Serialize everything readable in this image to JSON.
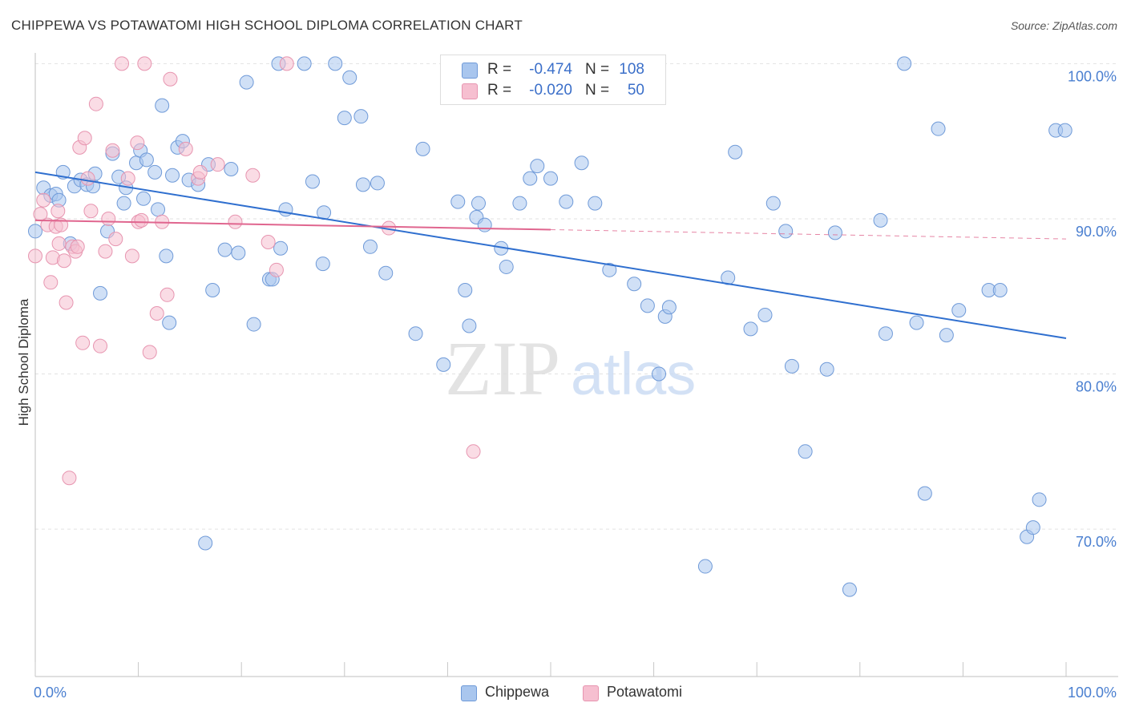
{
  "header": {
    "title": "CHIPPEWA VS POTAWATOMI HIGH SCHOOL DIPLOMA CORRELATION CHART",
    "source": "Source: ZipAtlas.com"
  },
  "watermark": {
    "zip": "ZIP",
    "atlas": "atlas"
  },
  "legend": {
    "rows": [
      {
        "r_label": "R =",
        "r_value": "-0.474",
        "n_label": "N =",
        "n_value": "108"
      },
      {
        "r_label": "R =",
        "r_value": "-0.020",
        "n_label": "N =",
        "n_value": "50"
      }
    ]
  },
  "bottom_legend": {
    "items": [
      "Chippewa",
      "Potawatomi"
    ]
  },
  "colors": {
    "chippewa_fill": "#a9c6ee",
    "chippewa_stroke": "#6f9ad8",
    "chippewa_line": "#2f6fcf",
    "potawatomi_fill": "#f6bfd0",
    "potawatomi_stroke": "#e795b0",
    "potawatomi_line": "#e0668f",
    "tick_label": "#4a7fd0",
    "grid": "#e2e2e2"
  },
  "chart_data": {
    "type": "scatter",
    "title": "CHIPPEWA VS POTAWATOMI HIGH SCHOOL DIPLOMA CORRELATION CHART",
    "xlabel": "",
    "ylabel": "High School Diploma",
    "xlim": [
      0,
      100
    ],
    "ylim": [
      60.5,
      101
    ],
    "x_tick_labels": [
      "0.0%",
      "100.0%"
    ],
    "y_ticks": [
      70,
      80,
      90,
      100
    ],
    "y_tick_labels": [
      "70.0%",
      "80.0%",
      "90.0%",
      "100.0%"
    ],
    "grid": true,
    "series": [
      {
        "name": "Chippewa",
        "trend": {
          "x": [
            0,
            100
          ],
          "y": [
            93.0,
            82.3
          ],
          "dashed_from": null
        },
        "points": [
          [
            0,
            89.2
          ],
          [
            0.8,
            92.0
          ],
          [
            1.5,
            91.5
          ],
          [
            2.0,
            91.6
          ],
          [
            2.3,
            91.2
          ],
          [
            2.7,
            93.0
          ],
          [
            3.4,
            88.4
          ],
          [
            3.8,
            92.1
          ],
          [
            4.4,
            92.5
          ],
          [
            5.0,
            92.2
          ],
          [
            5.6,
            92.1
          ],
          [
            5.8,
            92.9
          ],
          [
            6.3,
            85.2
          ],
          [
            7.0,
            89.2
          ],
          [
            7.5,
            94.2
          ],
          [
            8.1,
            92.7
          ],
          [
            8.6,
            91.0
          ],
          [
            8.8,
            92.0
          ],
          [
            9.8,
            93.6
          ],
          [
            10.2,
            94.4
          ],
          [
            10.5,
            91.3
          ],
          [
            10.8,
            93.8
          ],
          [
            11.6,
            93.0
          ],
          [
            11.9,
            90.6
          ],
          [
            12.3,
            97.3
          ],
          [
            12.7,
            87.6
          ],
          [
            13.0,
            83.3
          ],
          [
            13.3,
            92.8
          ],
          [
            13.8,
            94.6
          ],
          [
            14.3,
            95.0
          ],
          [
            14.9,
            92.5
          ],
          [
            15.8,
            92.2
          ],
          [
            16.5,
            69.1
          ],
          [
            16.8,
            93.5
          ],
          [
            17.2,
            85.4
          ],
          [
            18.4,
            88.0
          ],
          [
            19.0,
            93.2
          ],
          [
            19.7,
            87.8
          ],
          [
            20.5,
            98.8
          ],
          [
            21.2,
            83.2
          ],
          [
            22.7,
            86.1
          ],
          [
            23.0,
            86.1
          ],
          [
            23.6,
            100.0
          ],
          [
            23.8,
            88.1
          ],
          [
            24.3,
            90.6
          ],
          [
            26.1,
            100.0
          ],
          [
            26.9,
            92.4
          ],
          [
            27.9,
            87.1
          ],
          [
            28.0,
            90.4
          ],
          [
            29.1,
            100.0
          ],
          [
            30.0,
            96.5
          ],
          [
            30.5,
            99.1
          ],
          [
            31.6,
            96.6
          ],
          [
            31.8,
            92.2
          ],
          [
            32.5,
            88.2
          ],
          [
            33.2,
            92.3
          ],
          [
            34.0,
            86.5
          ],
          [
            36.9,
            82.6
          ],
          [
            37.6,
            94.5
          ],
          [
            39.6,
            80.6
          ],
          [
            41.0,
            91.1
          ],
          [
            41.7,
            85.4
          ],
          [
            42.1,
            83.1
          ],
          [
            42.8,
            90.1
          ],
          [
            43.0,
            91.0
          ],
          [
            43.6,
            89.6
          ],
          [
            45.2,
            88.1
          ],
          [
            45.7,
            86.9
          ],
          [
            47.0,
            91.0
          ],
          [
            48.0,
            92.6
          ],
          [
            48.7,
            93.4
          ],
          [
            50.0,
            92.6
          ],
          [
            51.5,
            91.1
          ],
          [
            53.0,
            93.6
          ],
          [
            54.3,
            91.0
          ],
          [
            55.7,
            86.7
          ],
          [
            58.1,
            85.8
          ],
          [
            59.4,
            84.4
          ],
          [
            60.5,
            80.0
          ],
          [
            61.1,
            83.7
          ],
          [
            61.5,
            84.3
          ],
          [
            65.0,
            67.6
          ],
          [
            67.2,
            86.2
          ],
          [
            67.9,
            94.3
          ],
          [
            69.4,
            82.9
          ],
          [
            70.8,
            83.8
          ],
          [
            71.6,
            91.0
          ],
          [
            72.8,
            89.2
          ],
          [
            73.4,
            80.5
          ],
          [
            74.7,
            75.0
          ],
          [
            76.8,
            80.3
          ],
          [
            77.6,
            89.1
          ],
          [
            79.0,
            66.1
          ],
          [
            82.0,
            89.9
          ],
          [
            82.5,
            82.6
          ],
          [
            84.3,
            100.0
          ],
          [
            85.5,
            83.3
          ],
          [
            86.3,
            72.3
          ],
          [
            87.6,
            95.8
          ],
          [
            88.4,
            82.5
          ],
          [
            89.6,
            84.1
          ],
          [
            92.5,
            85.4
          ],
          [
            93.6,
            85.4
          ],
          [
            96.2,
            69.5
          ],
          [
            96.8,
            70.1
          ],
          [
            97.4,
            71.9
          ],
          [
            99.0,
            95.7
          ],
          [
            99.9,
            95.7
          ]
        ]
      },
      {
        "name": "Potawatomi",
        "trend": {
          "x": [
            0,
            100
          ],
          "y": [
            89.9,
            88.7
          ],
          "dashed_from": 50
        },
        "points": [
          [
            0,
            87.6
          ],
          [
            0.5,
            90.3
          ],
          [
            0.8,
            91.2
          ],
          [
            1.2,
            89.6
          ],
          [
            1.5,
            85.9
          ],
          [
            1.7,
            87.5
          ],
          [
            2.0,
            89.5
          ],
          [
            2.2,
            90.5
          ],
          [
            2.3,
            88.4
          ],
          [
            2.5,
            89.6
          ],
          [
            2.8,
            87.3
          ],
          [
            3.0,
            84.6
          ],
          [
            3.3,
            73.3
          ],
          [
            3.6,
            88.2
          ],
          [
            3.9,
            87.9
          ],
          [
            4.1,
            88.2
          ],
          [
            4.3,
            94.6
          ],
          [
            4.6,
            82.0
          ],
          [
            4.8,
            95.2
          ],
          [
            5.1,
            92.6
          ],
          [
            5.4,
            90.5
          ],
          [
            5.9,
            97.4
          ],
          [
            6.3,
            81.8
          ],
          [
            6.8,
            87.9
          ],
          [
            7.1,
            90.0
          ],
          [
            7.5,
            94.4
          ],
          [
            7.8,
            88.7
          ],
          [
            8.4,
            100.0
          ],
          [
            9.0,
            92.6
          ],
          [
            9.4,
            87.6
          ],
          [
            9.9,
            94.9
          ],
          [
            10.0,
            89.8
          ],
          [
            10.3,
            89.9
          ],
          [
            10.6,
            100.0
          ],
          [
            11.1,
            81.4
          ],
          [
            11.8,
            83.9
          ],
          [
            12.3,
            89.8
          ],
          [
            12.8,
            85.1
          ],
          [
            13.1,
            99.0
          ],
          [
            14.6,
            94.5
          ],
          [
            15.8,
            92.6
          ],
          [
            16.0,
            93.0
          ],
          [
            17.7,
            93.5
          ],
          [
            19.4,
            89.8
          ],
          [
            21.1,
            92.8
          ],
          [
            22.6,
            88.5
          ],
          [
            23.4,
            86.7
          ],
          [
            24.4,
            100.0
          ],
          [
            34.3,
            89.4
          ],
          [
            42.5,
            75.0
          ]
        ]
      }
    ]
  }
}
